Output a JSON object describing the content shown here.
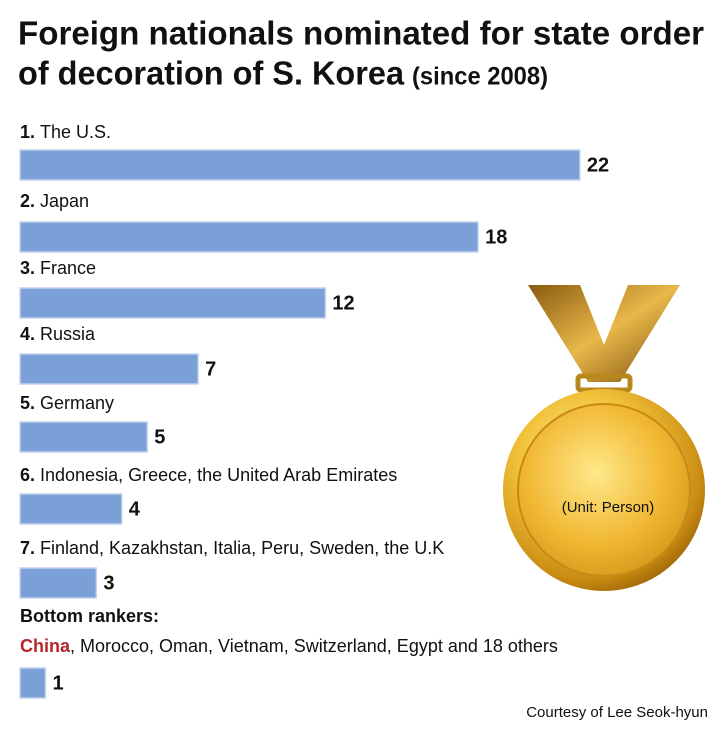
{
  "chart_data": {
    "type": "bar",
    "title": [
      "Foreign nationals nominated for state order",
      "of decoration of S. Korea"
    ],
    "subtitle": "(since 2008)",
    "ranks": [
      "1.",
      "2.",
      "3.",
      "4.",
      "5.",
      "6.",
      "7.",
      null
    ],
    "categories": [
      "The U.S.",
      "Japan",
      "France",
      "Russia",
      "Germany",
      "Indonesia, Greece, the United Arab Emirates",
      "Finland, Kazakhstan, Italia, Peru, Sweden, the U.K",
      null
    ],
    "values": [
      22,
      18,
      12,
      7,
      5,
      4,
      3,
      1
    ],
    "color": "#7ba0d8",
    "bottom_rankers": {
      "heading": "Bottom rankers:",
      "highlight": "China",
      "rest": ", Morocco, Oman, Vietnam, Switzerland, Egypt and 18 others"
    },
    "unit_note": "(Unit: Person)",
    "source": "Courtesy of Lee Seok-hyun"
  }
}
